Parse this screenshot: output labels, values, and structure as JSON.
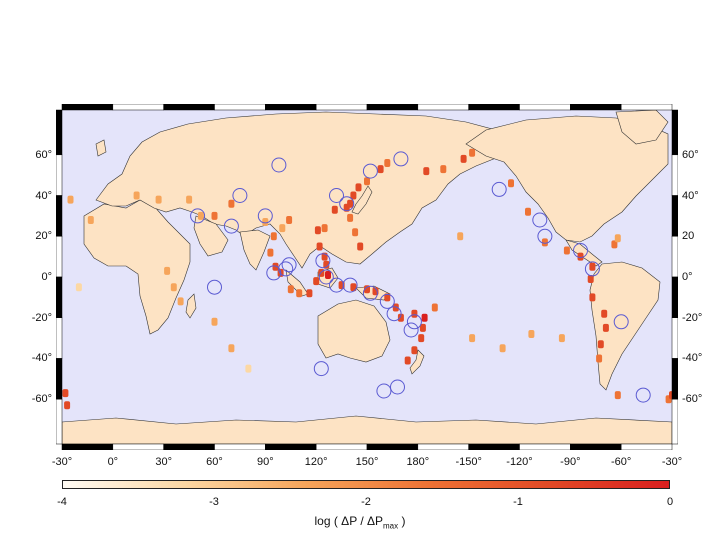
{
  "map": {
    "projection": "equirectangular, centered on 150°E (longitude -30° to -30°)",
    "ocean_color": "#e4e4fa",
    "land_color": "#fde3c4",
    "coast_color": "#222222",
    "frame_colors": [
      "#000000",
      "#ffffff"
    ],
    "circle_color": "#5a5ad2",
    "lat_ticks_left": [
      "60°",
      "40°",
      "20°",
      "0°",
      "-20°",
      "-40°",
      "-60°"
    ],
    "lat_ticks_right": [
      "60°",
      "40°",
      "20",
      "0°",
      "-20°",
      "-40°",
      "-60°"
    ],
    "lon_ticks": [
      "-30°",
      "0°",
      "30°",
      "60°",
      "90°",
      "120°",
      "150°",
      "180°",
      "-150°",
      "-120°",
      "-90°",
      "-60°",
      "-30°"
    ]
  },
  "colorbar": {
    "colors": [
      "#fffbf4",
      "#fcd8a4",
      "#f6a55b",
      "#ee7335",
      "#e24a26",
      "#d91f1f"
    ],
    "ticks": [
      "-4",
      "-3",
      "-2",
      "-1",
      "0"
    ],
    "label_prefix": "log ( ΔP / ΔP",
    "label_sub": "max",
    "label_suffix": " )"
  },
  "hotspots": [
    {
      "lon": 140,
      "lat": 36,
      "level": -0.6
    },
    {
      "lon": 142,
      "lat": 40,
      "level": -0.5
    },
    {
      "lon": 138,
      "lat": 34,
      "level": -0.9
    },
    {
      "lon": 131,
      "lat": 33,
      "level": -1.2
    },
    {
      "lon": 145,
      "lat": 44,
      "level": -1.0
    },
    {
      "lon": 150,
      "lat": 47,
      "level": -1.4
    },
    {
      "lon": 158,
      "lat": 53,
      "level": -1.0
    },
    {
      "lon": 162,
      "lat": 56,
      "level": -1.6
    },
    {
      "lon": 125,
      "lat": 24,
      "level": -1.3
    },
    {
      "lon": 121,
      "lat": 23,
      "level": -1.0
    },
    {
      "lon": 122,
      "lat": 15,
      "level": -0.9
    },
    {
      "lon": 125,
      "lat": 10,
      "level": -0.7
    },
    {
      "lon": 126,
      "lat": 6,
      "level": -0.5
    },
    {
      "lon": 123,
      "lat": 2,
      "level": -0.8
    },
    {
      "lon": 127,
      "lat": 1,
      "level": -0.4
    },
    {
      "lon": 120,
      "lat": -2,
      "level": -1.0
    },
    {
      "lon": 116,
      "lat": -8,
      "level": -1.1
    },
    {
      "lon": 110,
      "lat": -8,
      "level": -1.3
    },
    {
      "lon": 105,
      "lat": -6,
      "level": -1.4
    },
    {
      "lon": 99,
      "lat": 2,
      "level": -1.0
    },
    {
      "lon": 96,
      "lat": 5,
      "level": -1.2
    },
    {
      "lon": 93,
      "lat": 12,
      "level": -1.8
    },
    {
      "lon": 95,
      "lat": 20,
      "level": -2.0
    },
    {
      "lon": 100,
      "lat": 24,
      "level": -2.2
    },
    {
      "lon": 104,
      "lat": 28,
      "level": -2.0
    },
    {
      "lon": 90,
      "lat": 27,
      "level": -2.4
    },
    {
      "lon": 70,
      "lat": 36,
      "level": -1.8
    },
    {
      "lon": 60,
      "lat": 30,
      "level": -2.0
    },
    {
      "lon": 52,
      "lat": 30,
      "level": -2.3
    },
    {
      "lon": 45,
      "lat": 38,
      "level": -2.5
    },
    {
      "lon": 27,
      "lat": 38,
      "level": -2.3
    },
    {
      "lon": 14,
      "lat": 40,
      "level": -2.6
    },
    {
      "lon": 135,
      "lat": -4,
      "level": -0.9
    },
    {
      "lon": 142,
      "lat": -5,
      "level": -0.7
    },
    {
      "lon": 150,
      "lat": -6,
      "level": -0.5
    },
    {
      "lon": 155,
      "lat": -7,
      "level": -0.6
    },
    {
      "lon": 162,
      "lat": -10,
      "level": -0.7
    },
    {
      "lon": 167,
      "lat": -15,
      "level": -0.6
    },
    {
      "lon": 170,
      "lat": -20,
      "level": -0.9
    },
    {
      "lon": 178,
      "lat": -18,
      "level": -0.5
    },
    {
      "lon": 184,
      "lat": -20,
      "level": -0.4
    },
    {
      "lon": 183,
      "lat": -25,
      "level": -0.6
    },
    {
      "lon": 182,
      "lat": -30,
      "level": -0.7
    },
    {
      "lon": 178,
      "lat": -36,
      "level": -0.9
    },
    {
      "lon": 174,
      "lat": -41,
      "level": -1.1
    },
    {
      "lon": 146,
      "lat": 15,
      "level": -1.2
    },
    {
      "lon": 143,
      "lat": 22,
      "level": -1.4
    },
    {
      "lon": 140,
      "lat": 29,
      "level": -1.3
    },
    {
      "lon": 185,
      "lat": 52,
      "level": -1.2
    },
    {
      "lon": 195,
      "lat": 53,
      "level": -1.3
    },
    {
      "lon": 207,
      "lat": 58,
      "level": -1.0
    },
    {
      "lon": 212,
      "lat": 61,
      "level": -1.4
    },
    {
      "lon": 235,
      "lat": 46,
      "level": -1.8
    },
    {
      "lon": 245,
      "lat": 32,
      "level": -2.0
    },
    {
      "lon": 255,
      "lat": 17,
      "level": -1.3
    },
    {
      "lon": 268,
      "lat": 13,
      "level": -1.4
    },
    {
      "lon": 276,
      "lat": 10,
      "level": -1.2
    },
    {
      "lon": 283,
      "lat": 5,
      "level": -1.0
    },
    {
      "lon": 282,
      "lat": -1,
      "level": -1.1
    },
    {
      "lon": 283,
      "lat": -10,
      "level": -1.2
    },
    {
      "lon": 290,
      "lat": -18,
      "level": -1.0
    },
    {
      "lon": 291,
      "lat": -25,
      "level": -1.2
    },
    {
      "lon": 288,
      "lat": -33,
      "level": -0.9
    },
    {
      "lon": 287,
      "lat": -40,
      "level": -1.6
    },
    {
      "lon": 298,
      "lat": -58,
      "level": -2.0
    },
    {
      "lon": 328,
      "lat": -60,
      "level": -1.6
    },
    {
      "lon": 330,
      "lat": -58,
      "level": -1.0
    },
    {
      "lon": 296,
      "lat": 16,
      "level": -2.0
    },
    {
      "lon": 298,
      "lat": 19,
      "level": -2.2
    },
    {
      "lon": 265,
      "lat": -30,
      "level": -2.6
    },
    {
      "lon": 247,
      "lat": -28,
      "level": -2.5
    },
    {
      "lon": 190,
      "lat": -15,
      "level": -2.0
    },
    {
      "lon": 205,
      "lat": 20,
      "level": -2.2
    },
    {
      "lon": 60,
      "lat": -22,
      "level": -2.6
    },
    {
      "lon": 70,
      "lat": -35,
      "level": -2.8
    },
    {
      "lon": 80,
      "lat": -45,
      "level": -3.0
    },
    {
      "lon": 40,
      "lat": -12,
      "level": -2.7
    },
    {
      "lon": 36,
      "lat": -5,
      "level": -2.2
    },
    {
      "lon": 32,
      "lat": 3,
      "level": -2.4
    },
    {
      "lon": -13,
      "lat": 28,
      "level": -2.8
    },
    {
      "lon": -25,
      "lat": 38,
      "level": -2.6
    },
    {
      "lon": -20,
      "lat": -5,
      "level": -2.9
    },
    {
      "lon": -28,
      "lat": -57,
      "level": -0.6
    },
    {
      "lon": -27,
      "lat": -63,
      "level": -0.8
    },
    {
      "lon": 230,
      "lat": -35,
      "level": -2.7
    },
    {
      "lon": 212,
      "lat": -30,
      "level": -2.7
    }
  ],
  "circles": [
    {
      "lon": 138,
      "lat": 36
    },
    {
      "lon": 132,
      "lat": 40
    },
    {
      "lon": 170,
      "lat": 58
    },
    {
      "lon": 152,
      "lat": 52
    },
    {
      "lon": 98,
      "lat": 55
    },
    {
      "lon": 75,
      "lat": 40
    },
    {
      "lon": 90,
      "lat": 30
    },
    {
      "lon": 70,
      "lat": 25
    },
    {
      "lon": 102,
      "lat": 4
    },
    {
      "lon": 104,
      "lat": 6
    },
    {
      "lon": 95,
      "lat": 2
    },
    {
      "lon": 124,
      "lat": 8
    },
    {
      "lon": 126,
      "lat": 0
    },
    {
      "lon": 132,
      "lat": -4
    },
    {
      "lon": 140,
      "lat": -4
    },
    {
      "lon": 152,
      "lat": -8
    },
    {
      "lon": 162,
      "lat": -12
    },
    {
      "lon": 166,
      "lat": -18
    },
    {
      "lon": 178,
      "lat": -22
    },
    {
      "lon": 176,
      "lat": -26
    },
    {
      "lon": 168,
      "lat": -54
    },
    {
      "lon": 160,
      "lat": -56
    },
    {
      "lon": 123,
      "lat": -45
    },
    {
      "lon": 60,
      "lat": -5
    },
    {
      "lon": 228,
      "lat": 43
    },
    {
      "lon": 252,
      "lat": 28
    },
    {
      "lon": 283,
      "lat": 4
    },
    {
      "lon": 276,
      "lat": 13
    },
    {
      "lon": 255,
      "lat": 20
    },
    {
      "lon": 300,
      "lat": -22
    },
    {
      "lon": 313,
      "lat": -58
    },
    {
      "lon": 50,
      "lat": 30
    }
  ]
}
